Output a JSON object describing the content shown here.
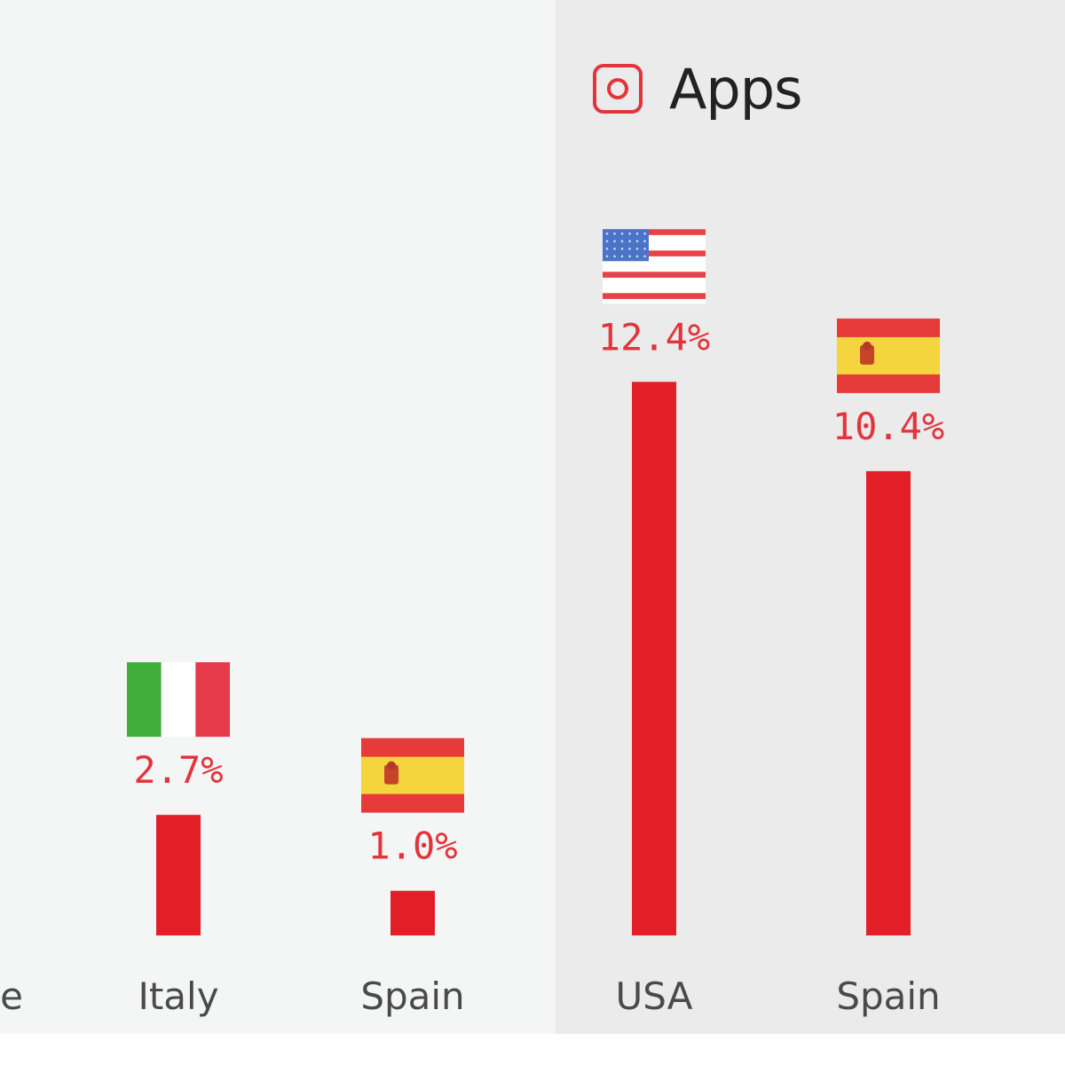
{
  "colors": {
    "bar": "#e21f26",
    "value_text": "#e3343c",
    "category_text": "#4a4a4a",
    "title_text": "#222222",
    "left_panel_bg": "#f4f5f5",
    "right_panel_bg": "#ebebeb"
  },
  "apps_section": {
    "title": "Apps",
    "icon": "rounded-square-circle-icon"
  },
  "chart_data": [
    {
      "type": "bar",
      "clipped_left": true,
      "categories": [
        "…e",
        "Italy",
        "Spain"
      ],
      "flags": [
        "",
        "italy-flag-icon",
        "spain-flag-icon"
      ],
      "values": [
        null,
        2.7,
        1.0
      ],
      "value_labels": [
        "",
        "2.7%",
        "1.0%"
      ],
      "ylim": [
        0,
        13
      ]
    },
    {
      "type": "bar",
      "title": "Apps",
      "categories": [
        "USA",
        "Spain"
      ],
      "flags": [
        "usa-flag-icon",
        "spain-flag-icon"
      ],
      "values": [
        12.4,
        10.4
      ],
      "value_labels": [
        "12.4%",
        "10.4%"
      ],
      "ylim": [
        0,
        13
      ]
    }
  ]
}
